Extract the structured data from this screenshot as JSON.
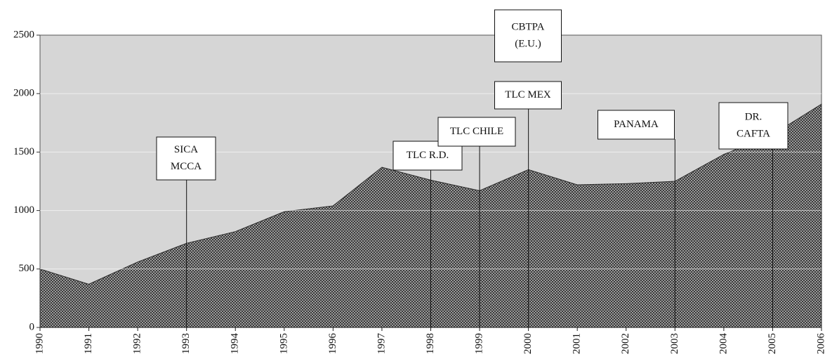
{
  "chart_data": {
    "type": "area",
    "categories": [
      "1990",
      "1991",
      "1992",
      "1993",
      "1994",
      "1995",
      "1996",
      "1997",
      "1998",
      "1999",
      "2000",
      "2001",
      "2002",
      "2003",
      "2004",
      "2005",
      "2006"
    ],
    "values": [
      500,
      370,
      560,
      720,
      820,
      990,
      1040,
      1370,
      1260,
      1170,
      1350,
      1220,
      1230,
      1250,
      1480,
      1650,
      1910
    ],
    "color": "#2a2a2a",
    "ylim": [
      0,
      2500
    ],
    "yticks": [
      0,
      500,
      1000,
      1500,
      2000,
      2500
    ],
    "grid": true,
    "annotations": [
      {
        "x": "1993",
        "lines": [
          "SICA",
          "MCCA"
        ]
      },
      {
        "x": "1998",
        "lines": [
          "TLC R.D."
        ]
      },
      {
        "x": "1999",
        "lines": [
          "TLC CHILE"
        ]
      },
      {
        "x": "2000",
        "lines": [
          "CBTPA",
          "(E.U.)"
        ]
      },
      {
        "x": "2000",
        "lines": [
          "TLC MEX"
        ]
      },
      {
        "x": "2003",
        "lines": [
          "PANAMA"
        ]
      },
      {
        "x": "2005",
        "lines": [
          "DR.",
          "CAFTA"
        ]
      }
    ]
  }
}
